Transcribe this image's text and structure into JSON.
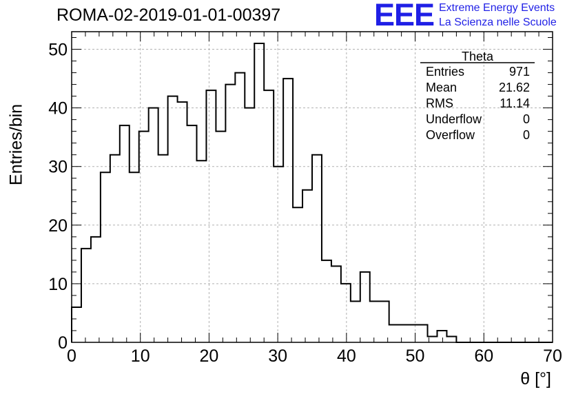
{
  "header": {
    "title": "ROMA-02-2019-01-01-00397",
    "logo_text": "EEE",
    "tagline1": "Extreme Energy Events",
    "tagline2": "La Scienza nelle Scuole"
  },
  "colors": {
    "logo": "#1f1fe6",
    "line": "#000000",
    "grid": "#b0b0b0"
  },
  "stats": {
    "name": "Theta",
    "rows": [
      {
        "label": "Entries",
        "value": "971"
      },
      {
        "label": "Mean",
        "value": "21.62"
      },
      {
        "label": "RMS",
        "value": "11.14"
      },
      {
        "label": "Underflow",
        "value": "0"
      },
      {
        "label": "Overflow",
        "value": "0"
      }
    ]
  },
  "chart_data": {
    "type": "histogram",
    "xlabel": "θ [°]",
    "ylabel": "Entries/bin",
    "xlim": [
      0,
      70
    ],
    "ylim": [
      0,
      53
    ],
    "x_ticks": [
      0,
      10,
      20,
      30,
      40,
      50,
      60,
      70
    ],
    "y_ticks": [
      0,
      10,
      20,
      30,
      40,
      50
    ],
    "grid": true,
    "bin_width": 1.4,
    "bin_start": 0,
    "values": [
      6,
      16,
      18,
      29,
      32,
      37,
      29,
      36,
      40,
      32,
      42,
      41,
      37,
      31,
      43,
      36,
      44,
      46,
      40,
      51,
      43,
      30,
      45,
      23,
      26,
      32,
      14,
      13,
      10,
      7,
      12,
      7,
      7,
      3,
      3,
      3,
      3,
      1,
      2,
      1,
      0,
      0,
      0,
      0,
      0,
      0,
      0,
      0,
      0,
      0
    ]
  }
}
